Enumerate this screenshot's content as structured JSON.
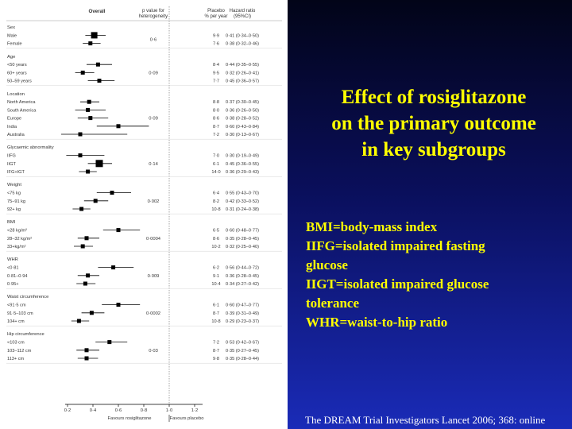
{
  "slide": {
    "title_lines": [
      "Effect of rosiglitazone",
      "on the primary outcome",
      "in key subgroups"
    ],
    "abbreviations": [
      "BMI=body-mass index",
      "IIFG=isolated impaired fasting",
      "glucose",
      "IIGT=isolated impaired glucose",
      "tolerance",
      "WHR=waist-to-hip ratio"
    ],
    "citation": "The DREAM Trial Investigators  Lancet 2006; 368: online"
  },
  "chart_data": {
    "type": "forest",
    "headers": {
      "overall": "Overall",
      "p_value": "p value for heterogeneity",
      "placebo": "Placebo % per year",
      "hazard_ratio": "Hazard ratio (95%CI)"
    },
    "x_axis": {
      "ticks": [
        "0·2",
        "0·4",
        "0·6",
        "0·8",
        "1·0",
        "1·2"
      ],
      "tick_values": [
        0.2,
        0.4,
        0.6,
        0.8,
        1.0,
        1.2
      ],
      "range": [
        0.2,
        1.2
      ],
      "favours_left": "Favours rosiglitazone",
      "favours_right": "Favours placebo"
    },
    "groups": [
      {
        "name": "Sex",
        "p": "0·6",
        "rows": [
          {
            "label": "Male",
            "placebo": "9·9",
            "hr_text": "0·41 (0·34–0·50)",
            "hr": 0.41,
            "lo": 0.34,
            "hi": 0.5
          },
          {
            "label": "Female",
            "placebo": "7·6",
            "hr_text": "0·38 (0·32–0·46)",
            "hr": 0.38,
            "lo": 0.32,
            "hi": 0.46
          }
        ]
      },
      {
        "name": "Age",
        "p": "0·09",
        "rows": [
          {
            "label": "<50 years",
            "placebo": "8·4",
            "hr_text": "0·44 (0·35–0·55)",
            "hr": 0.44,
            "lo": 0.35,
            "hi": 0.55
          },
          {
            "label": "60+ years",
            "placebo": "9·5",
            "hr_text": "0·32 (0·26–0·41)",
            "hr": 0.32,
            "lo": 0.26,
            "hi": 0.41
          },
          {
            "label": "50–59 years",
            "placebo": "7·7",
            "hr_text": "0·45 (0·36–0·57)",
            "hr": 0.45,
            "lo": 0.36,
            "hi": 0.57
          }
        ]
      },
      {
        "name": "Location",
        "p": "0·09",
        "rows": [
          {
            "label": "North America",
            "placebo": "8·8",
            "hr_text": "0·37 (0·30–0·45)",
            "hr": 0.37,
            "lo": 0.3,
            "hi": 0.45
          },
          {
            "label": "South America",
            "placebo": "8·0",
            "hr_text": "0·36 (0·26–0·50)",
            "hr": 0.36,
            "lo": 0.26,
            "hi": 0.5
          },
          {
            "label": "Europe",
            "placebo": "8·6",
            "hr_text": "0·38 (0·28–0·52)",
            "hr": 0.38,
            "lo": 0.28,
            "hi": 0.52
          },
          {
            "label": "India",
            "placebo": "8·7",
            "hr_text": "0·60 (0·43–0·84)",
            "hr": 0.6,
            "lo": 0.43,
            "hi": 0.84
          },
          {
            "label": "Australia",
            "placebo": "7·2",
            "hr_text": "0·30 (0·13–0·67)",
            "hr": 0.3,
            "lo": 0.13,
            "hi": 0.67
          }
        ]
      },
      {
        "name": "Glycaemic abnormality",
        "p": "0·14",
        "rows": [
          {
            "label": "IIFG",
            "placebo": "7·0",
            "hr_text": "0·30 (0·19–0·49)",
            "hr": 0.3,
            "lo": 0.19,
            "hi": 0.49
          },
          {
            "label": "IIGT",
            "placebo": "6·1",
            "hr_text": "0·45 (0·36–0·55)",
            "hr": 0.45,
            "lo": 0.36,
            "hi": 0.55
          },
          {
            "label": "IFG+IGT",
            "placebo": "14·0",
            "hr_text": "0·36 (0·29–0·43)",
            "hr": 0.36,
            "lo": 0.29,
            "hi": 0.43
          }
        ]
      },
      {
        "name": "Weight",
        "p": "0·002",
        "rows": [
          {
            "label": "<75 kg",
            "placebo": "6·4",
            "hr_text": "0·55 (0·43–0·70)",
            "hr": 0.55,
            "lo": 0.43,
            "hi": 0.7
          },
          {
            "label": "75–91 kg",
            "placebo": "8·2",
            "hr_text": "0·42 (0·33–0·52)",
            "hr": 0.42,
            "lo": 0.33,
            "hi": 0.52
          },
          {
            "label": "92+ kg",
            "placebo": "10·8",
            "hr_text": "0·31 (0·24–0·38)",
            "hr": 0.31,
            "lo": 0.24,
            "hi": 0.38
          }
        ]
      },
      {
        "name": "BMI",
        "p": "0·0004",
        "rows": [
          {
            "label": "<28 kg/m²",
            "placebo": "6·5",
            "hr_text": "0·60 (0·48–0·77)",
            "hr": 0.6,
            "lo": 0.48,
            "hi": 0.77
          },
          {
            "label": "28–32 kg/m²",
            "placebo": "8·6",
            "hr_text": "0·35 (0·28–0·45)",
            "hr": 0.35,
            "lo": 0.28,
            "hi": 0.45
          },
          {
            "label": "33+kg/m²",
            "placebo": "10·2",
            "hr_text": "0·32 (0·25–0·40)",
            "hr": 0.32,
            "lo": 0.25,
            "hi": 0.4
          }
        ]
      },
      {
        "name": "WHR",
        "p": "0·009",
        "rows": [
          {
            "label": "<0·81",
            "placebo": "6·2",
            "hr_text": "0·56 (0·44–0·72)",
            "hr": 0.56,
            "lo": 0.44,
            "hi": 0.72
          },
          {
            "label": "0·81–0·94",
            "placebo": "9·1",
            "hr_text": "0·36 (0·28–0·45)",
            "hr": 0.36,
            "lo": 0.28,
            "hi": 0.45
          },
          {
            "label": "0·95+",
            "placebo": "10·4",
            "hr_text": "0·34 (0·27–0·42)",
            "hr": 0.34,
            "lo": 0.27,
            "hi": 0.42
          }
        ]
      },
      {
        "name": "Waist circumference",
        "p": "0·0002",
        "rows": [
          {
            "label": "<91·5 cm",
            "placebo": "6·1",
            "hr_text": "0·60 (0·47–0·77)",
            "hr": 0.6,
            "lo": 0.47,
            "hi": 0.77
          },
          {
            "label": "91·5–103 cm",
            "placebo": "8·7",
            "hr_text": "0·39 (0·31–0·49)",
            "hr": 0.39,
            "lo": 0.31,
            "hi": 0.49
          },
          {
            "label": "104+ cm",
            "placebo": "10·8",
            "hr_text": "0·29 (0·23–0·37)",
            "hr": 0.29,
            "lo": 0.23,
            "hi": 0.37
          }
        ]
      },
      {
        "name": "Hip circumference",
        "p": "0·03",
        "rows": [
          {
            "label": "<103 cm",
            "placebo": "7·2",
            "hr_text": "0·53 (0·42–0·67)",
            "hr": 0.53,
            "lo": 0.42,
            "hi": 0.67
          },
          {
            "label": "103–112 cm",
            "placebo": "8·7",
            "hr_text": "0·35 (0·27–0·45)",
            "hr": 0.35,
            "lo": 0.27,
            "hi": 0.45
          },
          {
            "label": "113+ cm",
            "placebo": "9·8",
            "hr_text": "0·35 (0·28–0·44)",
            "hr": 0.35,
            "lo": 0.28,
            "hi": 0.44
          }
        ]
      }
    ]
  }
}
